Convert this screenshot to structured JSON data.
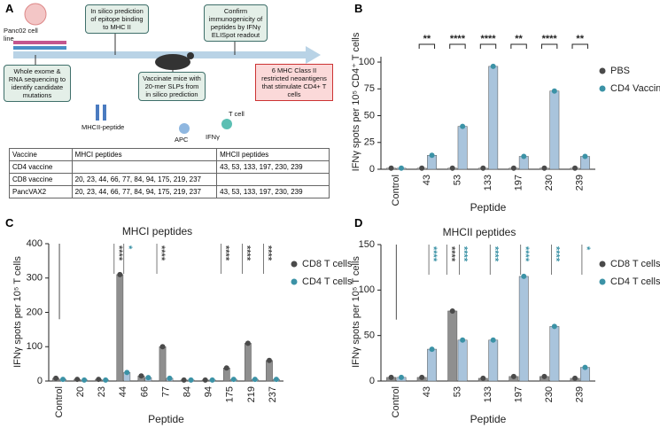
{
  "panels": [
    "A",
    "B",
    "C",
    "D"
  ],
  "diagram": {
    "cell_line": "Panc02 cell line",
    "step1": "Whole exome & RNA sequencing to identify candidate mutations",
    "step2": "In silico prediction of epitope binding to MHC II",
    "mhc_label": "MHCII-peptide",
    "step3": "Vaccinate mice with 20-mer SLPs from in silico prediction",
    "apc": "APC",
    "tcell": "T cell",
    "ifn": "IFNγ",
    "step4": "Confirm immunogenicity of peptides by IFNγ ELISpot readout",
    "result": "6 MHC Class II restricted neoantigens that stimulate CD4+ T cells"
  },
  "table": {
    "header": [
      "Vaccine",
      "MHCI peptides",
      "MHCII peptides"
    ],
    "rows": [
      [
        "CD4 vaccine",
        null,
        "43, 53, 133, 197, 230, 239"
      ],
      [
        "CD8 vaccine",
        "20, 23, 44, 66, 77, 84, 94, 175, 219, 237",
        null
      ],
      [
        "PancVAX2",
        "20, 23, 44, 66, 77, 84, 94, 175, 219, 237",
        "43, 53, 133, 197, 230, 239"
      ]
    ]
  },
  "chart_data": [
    {
      "type": "bar",
      "categories": [
        "Control",
        "43",
        "53",
        "133",
        "197",
        "230",
        "239"
      ],
      "series": [
        {
          "name": "PBS",
          "color": "#4a4a4a",
          "bar_color": "#bdbdbd",
          "values": [
            1,
            1,
            1,
            1,
            1,
            1,
            1
          ]
        },
        {
          "name": "CD4 Vaccine",
          "color": "#3b92a6",
          "bar_color": "#a9c4dc",
          "values": [
            1,
            13,
            40,
            96,
            12,
            73,
            12
          ]
        }
      ],
      "significance": [
        null,
        "**",
        "****",
        "****",
        "**",
        "****",
        "**"
      ],
      "ylim": [
        0,
        105
      ],
      "yticks": [
        0,
        25,
        50,
        75,
        100
      ],
      "xlabel": "Peptide",
      "ylabel": "IFNγ spots per 10⁵ CD4⁺ T cells",
      "legend": "right"
    },
    {
      "type": "bar",
      "title": "MHCI peptides",
      "categories": [
        "Control",
        "20",
        "23",
        "44",
        "66",
        "77",
        "84",
        "94",
        "175",
        "219",
        "237"
      ],
      "series": [
        {
          "name": "CD8 T cells",
          "color": "#4a4a4a",
          "bar_color": "#8f8f8f",
          "values": [
            8,
            5,
            5,
            310,
            15,
            100,
            3,
            3,
            38,
            110,
            60
          ],
          "significance": [
            null,
            null,
            null,
            "****",
            null,
            "****",
            null,
            null,
            "****",
            "****",
            "****"
          ]
        },
        {
          "name": "CD4 T cells",
          "color": "#3b92a6",
          "bar_color": "#a9c4dc",
          "values": [
            5,
            3,
            3,
            25,
            10,
            8,
            3,
            3,
            5,
            5,
            5
          ],
          "significance": [
            null,
            null,
            null,
            "*",
            null,
            null,
            null,
            null,
            null,
            null,
            null
          ]
        }
      ],
      "ylim": [
        0,
        400
      ],
      "yticks": [
        0,
        100,
        200,
        300,
        400
      ],
      "xlabel": "Peptide",
      "ylabel": "IFNγ spots per 10⁵ T cells",
      "legend": "right"
    },
    {
      "type": "bar",
      "title": "MHCII peptides",
      "categories": [
        "Control",
        "43",
        "53",
        "133",
        "197",
        "230",
        "239"
      ],
      "series": [
        {
          "name": "CD8 T cells",
          "color": "#4a4a4a",
          "bar_color": "#8f8f8f",
          "values": [
            4,
            4,
            77,
            3,
            5,
            5,
            3
          ],
          "significance": [
            null,
            null,
            "****",
            null,
            null,
            null,
            null
          ]
        },
        {
          "name": "CD4 T cells",
          "color": "#3b92a6",
          "bar_color": "#a9c4dc",
          "values": [
            4,
            35,
            45,
            45,
            115,
            60,
            15
          ],
          "significance": [
            null,
            "****",
            "****",
            "****",
            "****",
            "****",
            "*"
          ]
        }
      ],
      "ylim": [
        0,
        150
      ],
      "yticks": [
        0,
        50,
        100,
        150
      ],
      "xlabel": "Peptide",
      "ylabel": "IFNγ spots per 10⁵ T cells",
      "legend": "right"
    }
  ]
}
